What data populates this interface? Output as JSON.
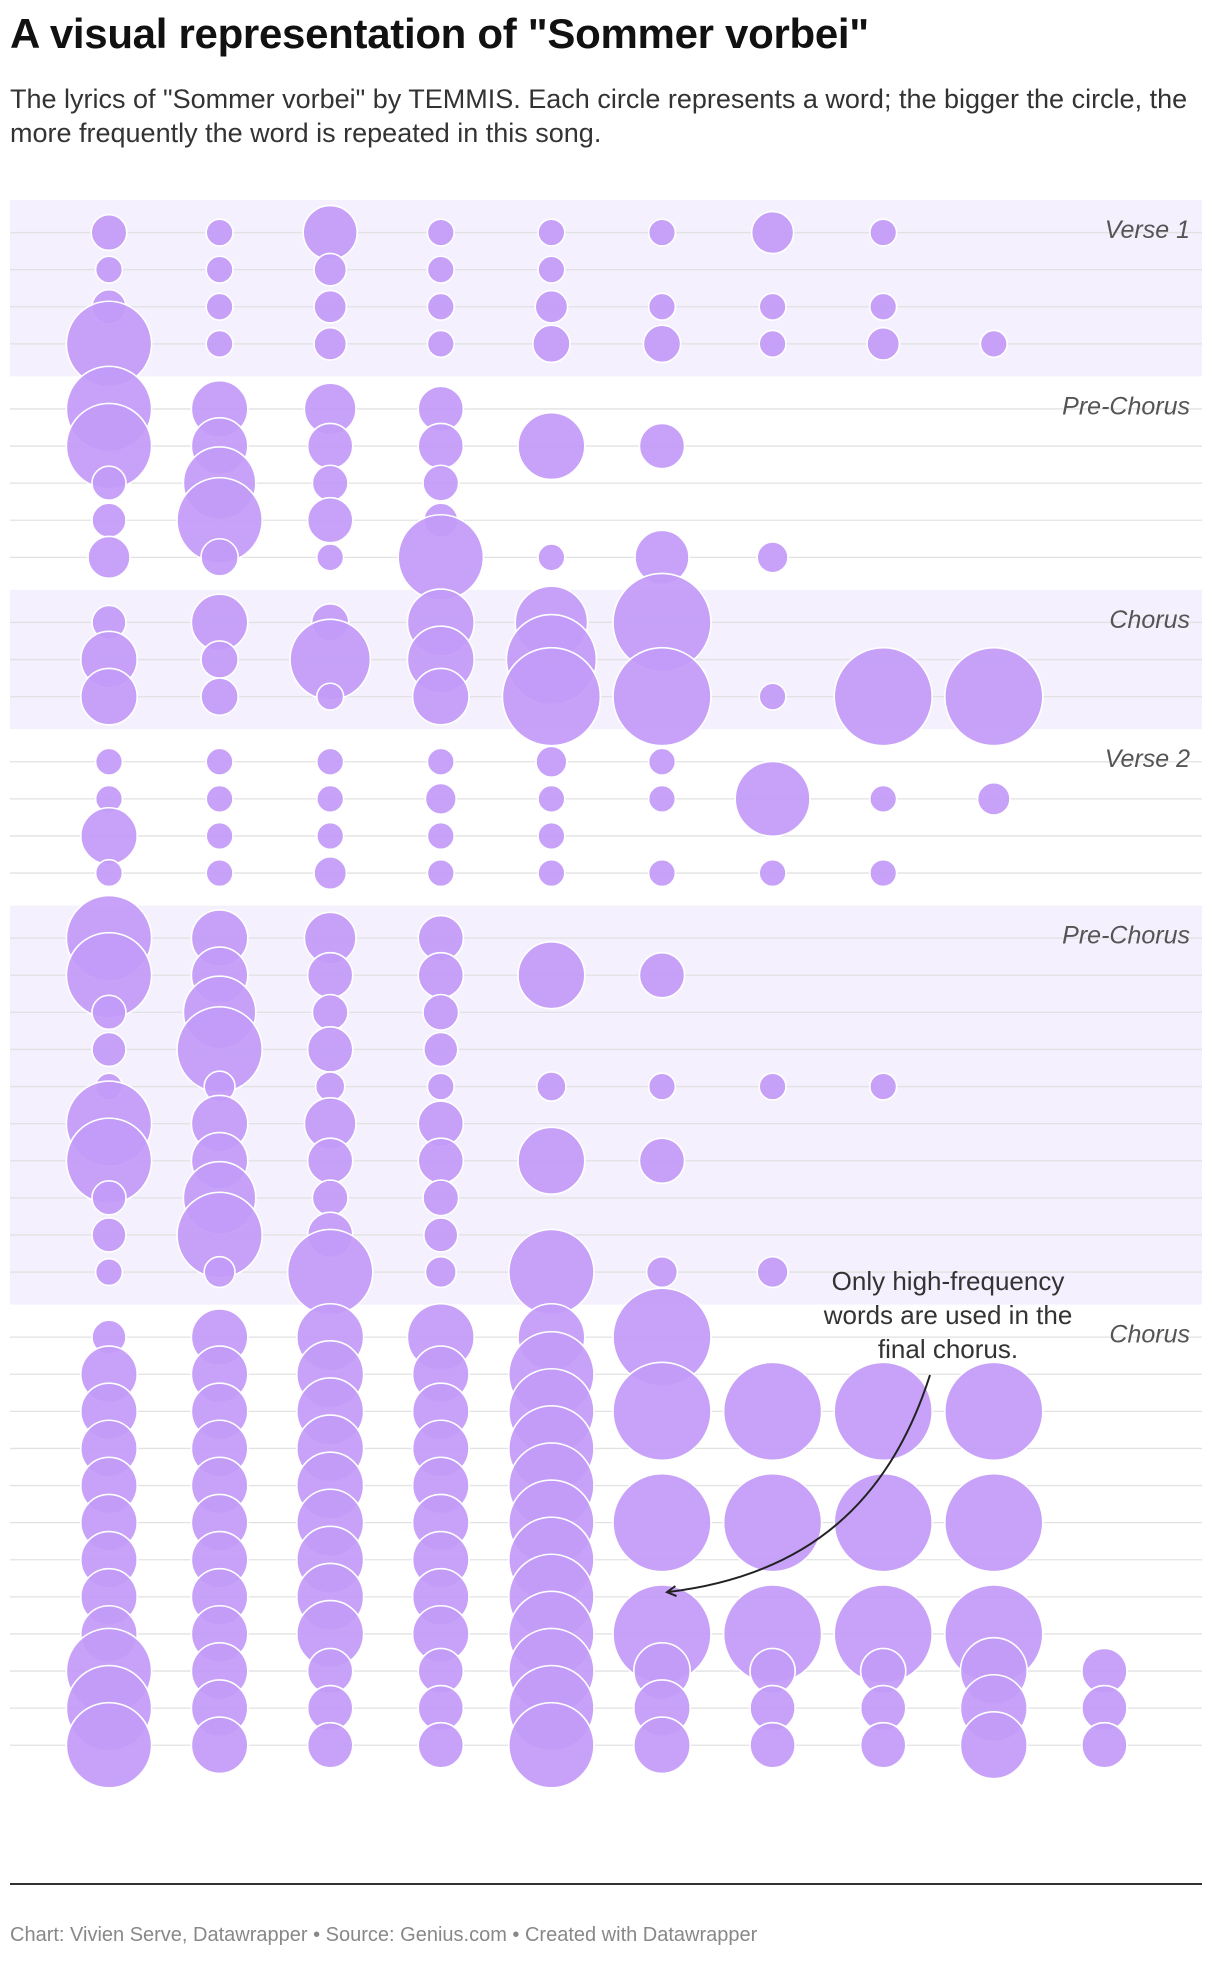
{
  "header": {
    "title": "A visual representation of \"Sommer vorbei\"",
    "description": "The lyrics of \"Sommer vorbei\" by TEMMIS. Each circle represents a word; the bigger the circle, the more frequently the word is repeated in this song."
  },
  "footer": {
    "credit": "Chart: Vivien Serve, Datawrapper • Source: Genius.com • Created with Datawrapper"
  },
  "colors": {
    "circle_fill": "#c39bf7",
    "circle_stroke": "#ffffff",
    "band_shade": "#f4f0fd",
    "gridline": "#e2e2e2",
    "section_label": "#555555"
  },
  "chart_data": {
    "type": "scatter",
    "encoding": "each circle is one word; x = word position in line, y = lyric line, size = how often the word repeats",
    "size_scale": "relative repetition, 0–1",
    "annotation": "Only high-frequency words are used in the final chorus.",
    "sections": [
      {
        "label": "Verse 1",
        "shaded": true,
        "lines": [
          [
            0.22,
            0.11,
            0.45,
            0.11,
            0.11,
            0.11,
            0.3,
            0.11
          ],
          [
            0.11,
            0.11,
            0.18,
            0.11,
            0.11
          ],
          [
            0.2,
            0.11,
            0.18,
            0.11,
            0.18,
            0.11,
            0.11,
            0.11
          ],
          [
            0.84,
            0.11,
            0.18,
            0.11,
            0.24,
            0.24,
            0.11,
            0.18,
            0.11
          ]
        ]
      },
      {
        "label": "Pre-Chorus",
        "shaded": false,
        "lines": [
          [
            0.84,
            0.48,
            0.42,
            0.34
          ],
          [
            0.84,
            0.48,
            0.34,
            0.34,
            0.61,
            0.34
          ],
          [
            0.2,
            0.68,
            0.22,
            0.22
          ],
          [
            0.2,
            0.84,
            0.34,
            0.2
          ],
          [
            0.3,
            0.24,
            0.11,
            0.84,
            0.11,
            0.45,
            0.16
          ]
        ]
      },
      {
        "label": "Chorus",
        "shaded": true,
        "lines": [
          [
            0.2,
            0.48,
            0.24,
            0.61,
            0.68,
            1.0
          ],
          [
            0.48,
            0.24,
            0.78,
            0.61,
            0.9
          ],
          [
            0.48,
            0.24,
            0.11,
            0.48,
            1.0,
            1.0,
            0.11,
            1.0,
            1.0
          ]
        ]
      },
      {
        "label": "Verse 2",
        "shaded": false,
        "lines": [
          [
            0.11,
            0.11,
            0.11,
            0.11,
            0.16,
            0.11
          ],
          [
            0.11,
            0.11,
            0.11,
            0.16,
            0.11,
            0.11,
            0.71,
            0.11,
            0.18
          ],
          [
            0.48,
            0.11,
            0.11,
            0.11,
            0.11
          ],
          [
            0.11,
            0.11,
            0.18,
            0.11,
            0.11,
            0.11,
            0.11,
            0.11
          ]
        ]
      },
      {
        "label": "Pre-Chorus",
        "shaded": true,
        "lines": [
          [
            0.84,
            0.48,
            0.42,
            0.34
          ],
          [
            0.84,
            0.48,
            0.34,
            0.34,
            0.61,
            0.34
          ],
          [
            0.2,
            0.68,
            0.22,
            0.22
          ],
          [
            0.2,
            0.84,
            0.34,
            0.2
          ],
          [
            0.11,
            0.16,
            0.14,
            0.11,
            0.14,
            0.11,
            0.11,
            0.11
          ],
          [
            0.84,
            0.48,
            0.42,
            0.34
          ],
          [
            0.84,
            0.48,
            0.34,
            0.34,
            0.61,
            0.34
          ],
          [
            0.2,
            0.68,
            0.22,
            0.22
          ],
          [
            0.2,
            0.84,
            0.34,
            0.2
          ],
          [
            0.11,
            0.16,
            0.84,
            0.16,
            0.84,
            0.16,
            0.16
          ]
        ]
      },
      {
        "label": "Chorus",
        "shaded": false,
        "lines": [
          [
            0.2,
            0.48,
            0.61,
            0.61,
            0.61,
            1.0
          ],
          [
            0.48,
            0.48,
            0.61,
            0.48,
            0.84
          ],
          [
            0.48,
            0.48,
            0.61,
            0.48,
            0.84,
            1.0,
            1.0,
            1.0,
            1.0
          ],
          [
            0.48,
            0.48,
            0.61,
            0.48,
            0.84
          ],
          [
            0.48,
            0.48,
            0.61,
            0.48,
            0.84
          ],
          [
            0.48,
            0.48,
            0.61,
            0.48,
            0.84,
            1.0,
            1.0,
            1.0,
            1.0
          ],
          [
            0.48,
            0.48,
            0.61,
            0.48,
            0.84
          ],
          [
            0.48,
            0.48,
            0.61,
            0.48,
            0.84
          ],
          [
            0.48,
            0.48,
            0.61,
            0.48,
            0.84,
            1.0,
            1.0,
            1.0,
            1.0
          ],
          [
            0.84,
            0.48,
            0.34,
            0.34,
            0.84,
            0.48,
            0.34,
            0.34,
            0.61,
            0.34
          ],
          [
            0.84,
            0.48,
            0.34,
            0.34,
            0.84,
            0.48,
            0.34,
            0.34,
            0.61,
            0.34
          ],
          [
            0.84,
            0.48,
            0.34,
            0.34,
            0.84,
            0.48,
            0.34,
            0.34,
            0.61,
            0.34
          ]
        ]
      }
    ]
  }
}
